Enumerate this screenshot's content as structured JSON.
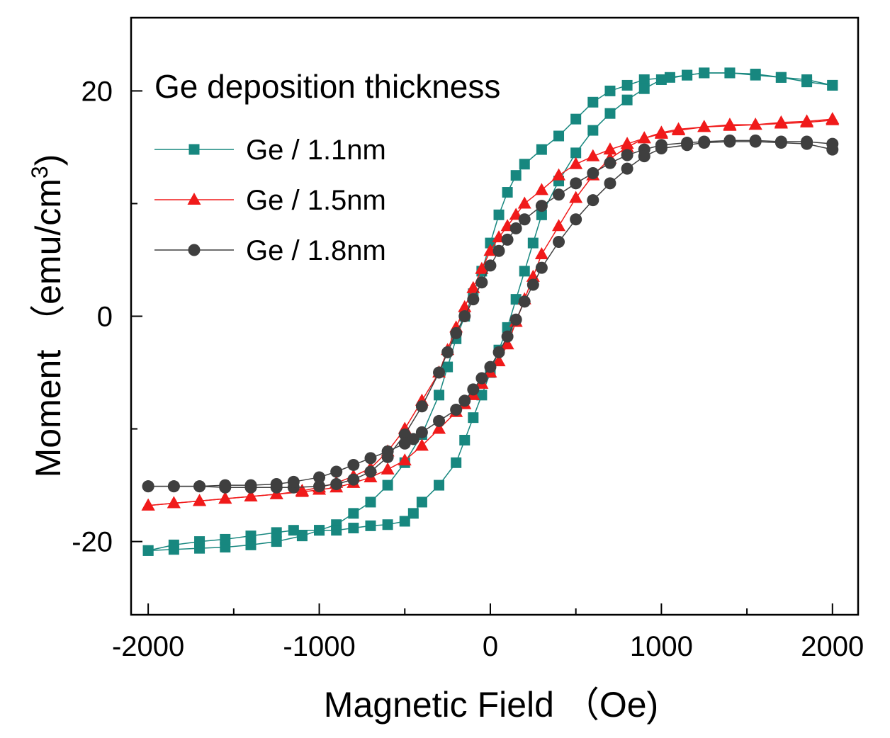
{
  "chart_data": {
    "type": "scatter",
    "title": "",
    "xlabel": "Magnetic Field （Oe)",
    "ylabel_main": "Moment （emu/cm",
    "ylabel_sup": "3",
    "ylabel_close": ")",
    "xlim": [
      -2100,
      2150
    ],
    "ylim": [
      -26.5,
      26.5
    ],
    "x_ticks": [
      -2000,
      -1000,
      0,
      1000,
      2000
    ],
    "x_tick_labels": [
      "-2000",
      "-1000",
      "0",
      "1000",
      "2000"
    ],
    "y_ticks": [
      -20,
      0,
      20
    ],
    "y_tick_labels": [
      "-20",
      "0",
      "20"
    ],
    "grid": false,
    "legend_title": "Ge deposition thickness",
    "legend_position": "top-left",
    "series": [
      {
        "name": "Ge / 1.1nm",
        "color": "#17877f",
        "marker": "square",
        "descending": {
          "x": [
            2000,
            1850,
            1700,
            1550,
            1400,
            1250,
            1150,
            1050,
            900,
            800,
            700,
            600,
            500,
            400,
            300,
            200,
            150,
            100,
            50,
            0,
            -50,
            -100,
            -150,
            -200,
            -250,
            -300,
            -400,
            -500,
            -600,
            -700,
            -800,
            -900,
            -1000,
            -1100,
            -1250,
            -1400,
            -1550,
            -1700,
            -1850,
            -2000
          ],
          "y": [
            20.5,
            21.0,
            21.2,
            21.5,
            21.6,
            21.6,
            21.4,
            21.2,
            21.0,
            20.5,
            20.0,
            19.0,
            17.5,
            16.0,
            14.8,
            13.5,
            12.5,
            11.0,
            9.0,
            6.5,
            4.0,
            2.0,
            0.0,
            -2.0,
            -4.5,
            -7.0,
            -10.5,
            -13.0,
            -15.0,
            -16.5,
            -17.5,
            -18.5,
            -19.0,
            -19.5,
            -20.0,
            -20.3,
            -20.5,
            -20.6,
            -20.7,
            -20.8
          ]
        },
        "ascending": {
          "x": [
            -2000,
            -1850,
            -1700,
            -1550,
            -1400,
            -1250,
            -1150,
            -1000,
            -900,
            -800,
            -700,
            -600,
            -500,
            -450,
            -400,
            -300,
            -200,
            -150,
            -100,
            -50,
            0,
            50,
            100,
            150,
            200,
            250,
            300,
            400,
            500,
            600,
            700,
            800,
            900,
            1000,
            1150,
            1250,
            1400,
            1550,
            1700,
            1850,
            2000
          ],
          "y": [
            -20.8,
            -20.3,
            -20.0,
            -19.8,
            -19.5,
            -19.2,
            -19.0,
            -19.0,
            -19.0,
            -18.8,
            -18.6,
            -18.5,
            -18.2,
            -17.5,
            -16.5,
            -15.0,
            -13.0,
            -11.0,
            -9.0,
            -7.0,
            -5.0,
            -3.0,
            -1.0,
            1.5,
            4.0,
            6.5,
            9.0,
            12.0,
            14.5,
            16.5,
            18.0,
            19.2,
            20.2,
            21.0,
            21.4,
            21.6,
            21.6,
            21.4,
            21.2,
            20.8,
            20.5
          ]
        }
      },
      {
        "name": "Ge / 1.5nm",
        "color": "#f01a1a",
        "marker": "triangle",
        "descending": {
          "x": [
            2000,
            1850,
            1700,
            1550,
            1400,
            1250,
            1100,
            1000,
            900,
            800,
            700,
            600,
            500,
            400,
            300,
            200,
            150,
            100,
            50,
            0,
            -50,
            -100,
            -150,
            -200,
            -250,
            -300,
            -400,
            -500,
            -600,
            -700,
            -800,
            -900,
            -1000,
            -1100,
            -1250,
            -1400,
            -1550,
            -1700,
            -1850,
            -2000
          ],
          "y": [
            17.5,
            17.3,
            17.2,
            17.0,
            17.0,
            16.8,
            16.5,
            16.2,
            15.8,
            15.3,
            14.8,
            14.2,
            13.5,
            12.5,
            11.2,
            10.0,
            9.0,
            8.0,
            7.0,
            5.8,
            4.2,
            2.5,
            0.8,
            -1.0,
            -3.0,
            -5.0,
            -7.5,
            -10.0,
            -12.0,
            -13.5,
            -14.2,
            -14.8,
            -15.2,
            -15.5,
            -15.8,
            -16.0,
            -16.2,
            -16.4,
            -16.6,
            -16.8
          ]
        },
        "ascending": {
          "x": [
            -2000,
            -1850,
            -1700,
            -1550,
            -1400,
            -1250,
            -1100,
            -1000,
            -900,
            -800,
            -700,
            -600,
            -500,
            -400,
            -300,
            -200,
            -150,
            -100,
            -50,
            0,
            50,
            100,
            150,
            200,
            250,
            300,
            400,
            500,
            600,
            700,
            800,
            900,
            1000,
            1100,
            1250,
            1400,
            1550,
            1700,
            1850,
            2000
          ],
          "y": [
            -16.8,
            -16.6,
            -16.4,
            -16.2,
            -16.0,
            -15.8,
            -15.6,
            -15.4,
            -15.2,
            -14.8,
            -14.3,
            -13.6,
            -12.8,
            -11.5,
            -10.0,
            -8.5,
            -7.8,
            -7.0,
            -6.0,
            -5.0,
            -4.0,
            -2.5,
            -0.5,
            1.5,
            3.5,
            5.5,
            8.0,
            10.5,
            12.5,
            14.0,
            15.0,
            15.8,
            16.3,
            16.6,
            16.8,
            16.9,
            17.0,
            17.1,
            17.2,
            17.4
          ]
        }
      },
      {
        "name": "Ge / 1.8nm",
        "color": "#3f3f3f",
        "marker": "circle",
        "descending": {
          "x": [
            2000,
            1850,
            1700,
            1550,
            1400,
            1250,
            1150,
            1000,
            900,
            800,
            700,
            600,
            500,
            400,
            300,
            200,
            150,
            100,
            50,
            0,
            -50,
            -100,
            -150,
            -200,
            -250,
            -300,
            -400,
            -500,
            -600,
            -700,
            -800,
            -900,
            -1000,
            -1150,
            -1250,
            -1400,
            -1550,
            -1700,
            -1850,
            -2000
          ],
          "y": [
            15.3,
            15.5,
            15.5,
            15.6,
            15.6,
            15.5,
            15.4,
            15.2,
            14.8,
            14.3,
            13.6,
            12.7,
            11.8,
            10.8,
            9.8,
            8.6,
            7.8,
            6.8,
            5.8,
            4.5,
            3.0,
            1.5,
            0.0,
            -1.5,
            -3.2,
            -5.0,
            -8.0,
            -10.5,
            -12.5,
            -13.8,
            -14.5,
            -14.9,
            -15.1,
            -15.2,
            -15.2,
            -15.2,
            -15.2,
            -15.1,
            -15.1,
            -15.1
          ]
        },
        "ascending": {
          "x": [
            -2000,
            -1850,
            -1700,
            -1550,
            -1400,
            -1250,
            -1150,
            -1000,
            -900,
            -800,
            -700,
            -600,
            -500,
            -450,
            -400,
            -300,
            -200,
            -150,
            -100,
            -50,
            0,
            50,
            100,
            150,
            200,
            250,
            300,
            400,
            500,
            600,
            700,
            800,
            900,
            1000,
            1150,
            1250,
            1400,
            1550,
            1700,
            1850,
            2000
          ],
          "y": [
            -15.1,
            -15.1,
            -15.1,
            -15.0,
            -15.0,
            -14.9,
            -14.7,
            -14.3,
            -13.8,
            -13.2,
            -12.6,
            -12.0,
            -11.3,
            -10.9,
            -10.3,
            -9.3,
            -8.3,
            -7.5,
            -6.5,
            -5.5,
            -4.5,
            -3.2,
            -1.8,
            -0.3,
            1.3,
            2.8,
            4.3,
            6.6,
            8.6,
            10.3,
            11.8,
            13.1,
            14.2,
            14.9,
            15.2,
            15.4,
            15.5,
            15.5,
            15.4,
            15.3,
            14.8
          ]
        }
      }
    ]
  }
}
